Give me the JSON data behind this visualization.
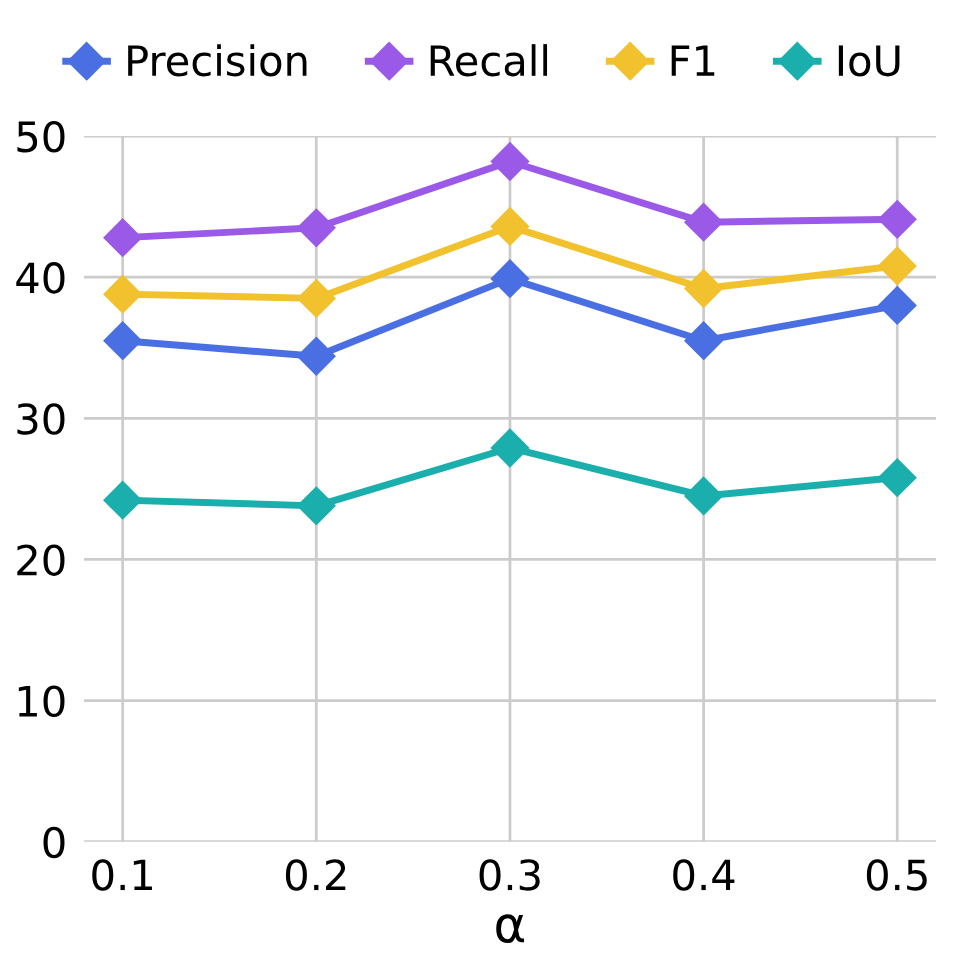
{
  "chart_data": {
    "type": "line",
    "xlabel": "α",
    "x": [
      0.1,
      0.2,
      0.3,
      0.4,
      0.5
    ],
    "series": [
      {
        "name": "Precision",
        "color": "#4a6fe3",
        "values": [
          35.5,
          34.4,
          39.9,
          35.5,
          38.0
        ]
      },
      {
        "name": "Recall",
        "color": "#9b59e8",
        "values": [
          42.8,
          43.5,
          48.2,
          43.9,
          44.1
        ]
      },
      {
        "name": "F1",
        "color": "#f2c12e",
        "values": [
          38.8,
          38.5,
          43.6,
          39.2,
          40.8
        ]
      },
      {
        "name": "IoU",
        "color": "#1aafac",
        "values": [
          24.2,
          23.8,
          27.9,
          24.5,
          25.8
        ]
      }
    ],
    "xlim": [
      0.08,
      0.52
    ],
    "xticks": [
      0.1,
      0.2,
      0.3,
      0.4,
      0.5
    ],
    "ylim": [
      0,
      50
    ],
    "yticks": [
      0,
      10,
      20,
      30,
      40,
      50
    ],
    "grid": true,
    "legend": "top",
    "marker": "diamond",
    "line_style": "solid"
  }
}
